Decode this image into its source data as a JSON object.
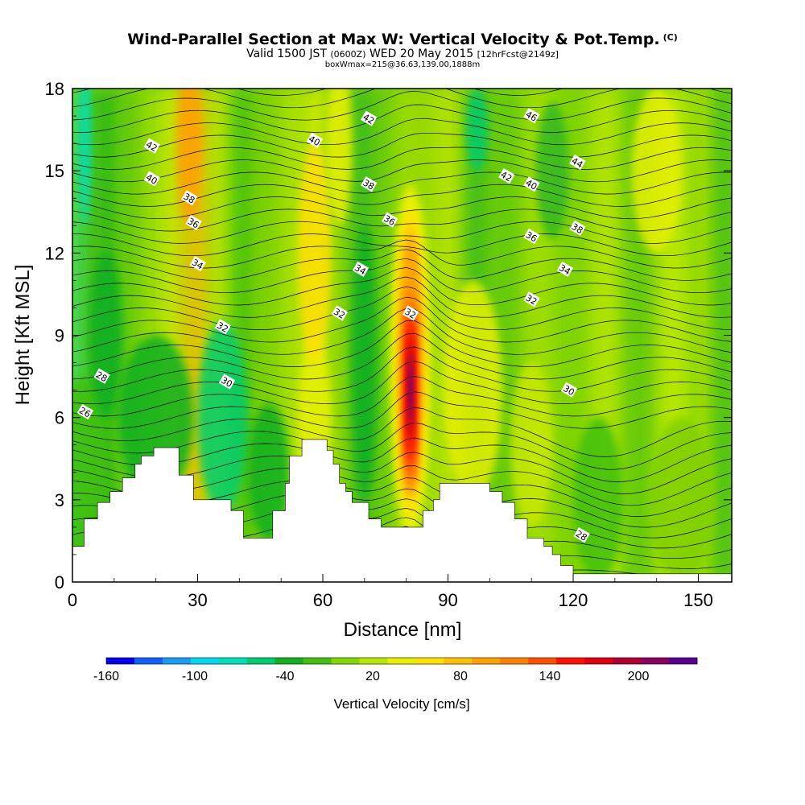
{
  "header": {
    "title": "Wind-Parallel Section at Max W: Vertical Velocity & Pot.Temp.",
    "title_mark": "(C)",
    "valid_prefix": "Valid 1500 JST",
    "valid_utc": "(0600Z)",
    "valid_date": "WED 20 May 2015",
    "forecast": "[12hrFcst@2149z]",
    "box_info": "boxWmax=215@36.63,139.00,1888m"
  },
  "chart_data": {
    "type": "heatmap",
    "xlabel": "Distance [nm]",
    "ylabel": "Height [Kft MSL]",
    "xlim": [
      0,
      158
    ],
    "ylim": [
      0,
      18
    ],
    "x_ticks": [
      0,
      30,
      60,
      90,
      120,
      150
    ],
    "y_ticks": [
      0,
      3,
      6,
      9,
      12,
      15,
      18
    ],
    "terrain_kft": [
      [
        0,
        1.3
      ],
      [
        2.8,
        1.3
      ],
      [
        2.8,
        2.3
      ],
      [
        6,
        2.3
      ],
      [
        6,
        2.9
      ],
      [
        9,
        2.9
      ],
      [
        9,
        3.3
      ],
      [
        12,
        3.3
      ],
      [
        12,
        3.8
      ],
      [
        15,
        3.8
      ],
      [
        15,
        4.3
      ],
      [
        16.5,
        4.3
      ],
      [
        16.5,
        4.6
      ],
      [
        19.5,
        4.6
      ],
      [
        19.5,
        4.9
      ],
      [
        25.5,
        4.9
      ],
      [
        25.5,
        3.9
      ],
      [
        29,
        3.9
      ],
      [
        29,
        3.0
      ],
      [
        38,
        3.0
      ],
      [
        38,
        2.6
      ],
      [
        41,
        2.6
      ],
      [
        41,
        1.6
      ],
      [
        48,
        1.6
      ],
      [
        48,
        2.6
      ],
      [
        51,
        2.6
      ],
      [
        51,
        3.6
      ],
      [
        52,
        3.6
      ],
      [
        52,
        4.6
      ],
      [
        55,
        4.6
      ],
      [
        55,
        5.2
      ],
      [
        61,
        5.2
      ],
      [
        61,
        4.8
      ],
      [
        62.5,
        4.8
      ],
      [
        62.5,
        4.3
      ],
      [
        64,
        4.3
      ],
      [
        64,
        3.6
      ],
      [
        65.5,
        3.6
      ],
      [
        65.5,
        3.3
      ],
      [
        67,
        3.3
      ],
      [
        67,
        2.9
      ],
      [
        71,
        2.9
      ],
      [
        71,
        2.3
      ],
      [
        74,
        2.3
      ],
      [
        74,
        2.0
      ],
      [
        81,
        2.0
      ],
      [
        81,
        2.0
      ],
      [
        84,
        2.0
      ],
      [
        84,
        2.6
      ],
      [
        86.5,
        2.6
      ],
      [
        86.5,
        3.0
      ],
      [
        88,
        3.0
      ],
      [
        88,
        3.6
      ],
      [
        100,
        3.6
      ],
      [
        100,
        3.3
      ],
      [
        103,
        3.3
      ],
      [
        103,
        2.9
      ],
      [
        106,
        2.9
      ],
      [
        106,
        2.3
      ],
      [
        109,
        2.3
      ],
      [
        109,
        1.6
      ],
      [
        113,
        1.6
      ],
      [
        113,
        1.3
      ],
      [
        115,
        1.3
      ],
      [
        115,
        1.0
      ],
      [
        117,
        1.0
      ],
      [
        117,
        0.6
      ],
      [
        120,
        0.6
      ],
      [
        120,
        0.3
      ],
      [
        158,
        0.3
      ]
    ],
    "w_core": {
      "x_nm": 81,
      "height_kft": 7,
      "max_cms": 215
    },
    "w_updrafts": [
      {
        "x_nm": 28,
        "height_kft": 16,
        "value_cms": 90
      },
      {
        "x_nm": 81,
        "height_kft": 7,
        "value_cms": 215
      },
      {
        "x_nm": 58,
        "height_kft": 12,
        "value_cms": 40
      },
      {
        "x_nm": 100,
        "height_kft": 7,
        "value_cms": 40
      }
    ],
    "w_downdrafts": [
      {
        "x_nm": 3,
        "height_kft": 15,
        "value_cms": -60
      },
      {
        "x_nm": 72,
        "height_kft": 9,
        "value_cms": -40
      },
      {
        "x_nm": 97,
        "height_kft": 17,
        "value_cms": -40
      },
      {
        "x_nm": 36,
        "height_kft": 6,
        "value_cms": -40
      }
    ],
    "isentropes_K_labels": [
      {
        "value": "26",
        "x_nm": 3,
        "height_kft": 6.2
      },
      {
        "value": "28",
        "x_nm": 7,
        "height_kft": 7.5
      },
      {
        "value": "28",
        "x_nm": 122,
        "height_kft": 1.7
      },
      {
        "value": "30",
        "x_nm": 37,
        "height_kft": 7.3
      },
      {
        "value": "30",
        "x_nm": 119,
        "height_kft": 7.0
      },
      {
        "value": "32",
        "x_nm": 36,
        "height_kft": 9.3
      },
      {
        "value": "32",
        "x_nm": 64,
        "height_kft": 9.8
      },
      {
        "value": "32",
        "x_nm": 81,
        "height_kft": 9.8
      },
      {
        "value": "32",
        "x_nm": 110,
        "height_kft": 10.3
      },
      {
        "value": "34",
        "x_nm": 30,
        "height_kft": 11.6
      },
      {
        "value": "34",
        "x_nm": 69,
        "height_kft": 11.4
      },
      {
        "value": "34",
        "x_nm": 118,
        "height_kft": 11.4
      },
      {
        "value": "36",
        "x_nm": 29,
        "height_kft": 13.1
      },
      {
        "value": "36",
        "x_nm": 76,
        "height_kft": 13.2
      },
      {
        "value": "36",
        "x_nm": 110,
        "height_kft": 12.6
      },
      {
        "value": "38",
        "x_nm": 28,
        "height_kft": 14.0
      },
      {
        "value": "38",
        "x_nm": 71,
        "height_kft": 14.5
      },
      {
        "value": "38",
        "x_nm": 121,
        "height_kft": 12.9
      },
      {
        "value": "40",
        "x_nm": 19,
        "height_kft": 14.7
      },
      {
        "value": "40",
        "x_nm": 58,
        "height_kft": 16.1
      },
      {
        "value": "40",
        "x_nm": 110,
        "height_kft": 14.5
      },
      {
        "value": "42",
        "x_nm": 19,
        "height_kft": 15.9
      },
      {
        "value": "42",
        "x_nm": 71,
        "height_kft": 16.9
      },
      {
        "value": "42",
        "x_nm": 104,
        "height_kft": 14.8
      },
      {
        "value": "44",
        "x_nm": 121,
        "height_kft": 15.3
      },
      {
        "value": "46",
        "x_nm": 110,
        "height_kft": 17.0
      }
    ],
    "colorbar": {
      "title": "Vertical Velocity [cm/s]",
      "tick_labels": [
        "-160",
        "-100",
        "-40",
        "20",
        "80",
        "140",
        "200"
      ],
      "colors": [
        "#0000ee",
        "#1060ff",
        "#1a9cf5",
        "#00d8f5",
        "#00e0b8",
        "#00cc70",
        "#10b020",
        "#40c010",
        "#80d800",
        "#b8e800",
        "#e8f000",
        "#ffe000",
        "#ffc000",
        "#ffa000",
        "#ff8000",
        "#ff5000",
        "#ff1000",
        "#e00010",
        "#b00030",
        "#880060",
        "#5a0090"
      ]
    }
  }
}
